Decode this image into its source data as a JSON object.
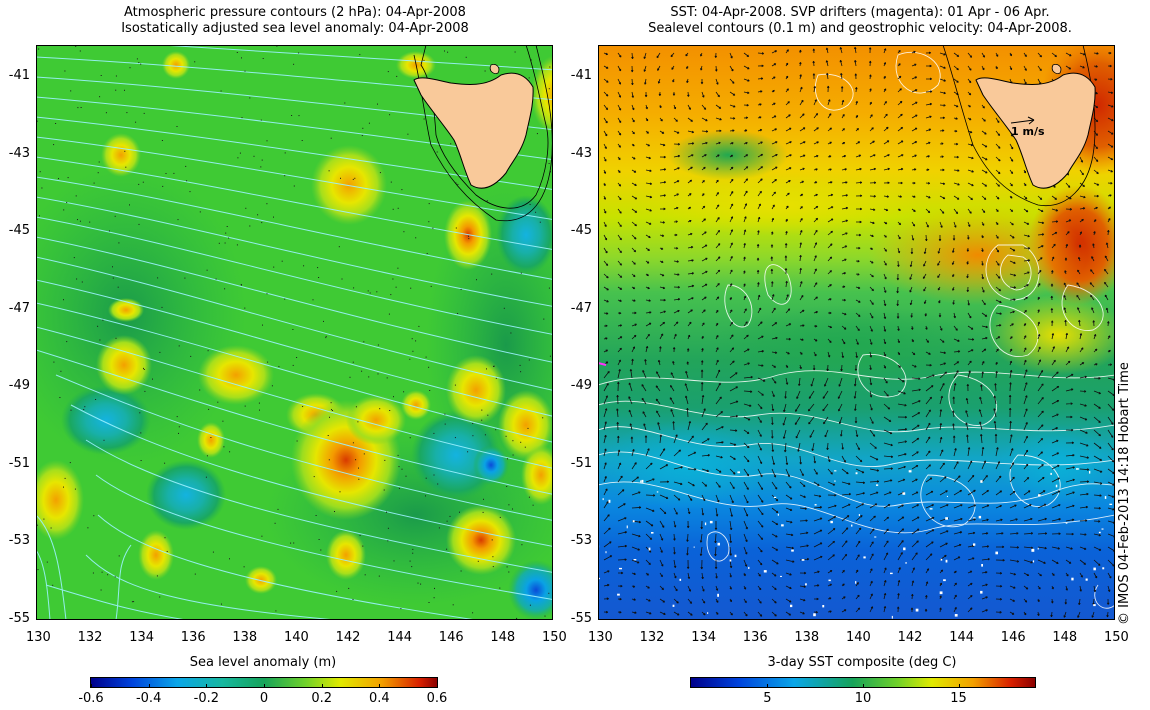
{
  "left_panel": {
    "title_line1": "Atmospheric pressure contours (2 hPa): 04-Apr-2008",
    "title_line2": "Isostatically adjusted sea level anomaly: 04-Apr-2008",
    "colorbar_title": "Sea level anomaly (m)",
    "colorbar_ticks": [
      {
        "label": "-0.6",
        "value": -0.6
      },
      {
        "label": "-0.4",
        "value": -0.4
      },
      {
        "label": "-0.2",
        "value": -0.2
      },
      {
        "label": "0",
        "value": 0
      },
      {
        "label": "0.2",
        "value": 0.2
      },
      {
        "label": "0.4",
        "value": 0.4
      },
      {
        "label": "0.6",
        "value": 0.6
      }
    ],
    "colorbar_range": [
      -0.6,
      0.6
    ]
  },
  "right_panel": {
    "title_line1": "SST: 04-Apr-2008. SVP drifters (magenta): 01 Apr - 06 Apr.",
    "title_line2": "Sealevel contours (0.1 m) and geostrophic velocity: 04-Apr-2008.",
    "colorbar_title": "3-day SST composite (deg C)",
    "colorbar_ticks": [
      {
        "label": "5",
        "value": 5
      },
      {
        "label": "10",
        "value": 10
      },
      {
        "label": "15",
        "value": 15
      }
    ],
    "colorbar_range": [
      1,
      19
    ],
    "velocity_scale_label": "1 m/s"
  },
  "axes": {
    "lon_ticks": [
      "130",
      "132",
      "134",
      "136",
      "138",
      "140",
      "142",
      "144",
      "146",
      "148",
      "150"
    ],
    "lat_ticks": [
      "-41",
      "-43",
      "-45",
      "-47",
      "-49",
      "-51",
      "-53",
      "-55"
    ],
    "lon_range": [
      130,
      150
    ],
    "lat_range": [
      -55,
      -40.2
    ]
  },
  "credit": "© IMOS 04-Feb-2013 14:18 Hobart Time",
  "colors": {
    "land": "#f9c99a",
    "sla_base": "#33cc33",
    "contour": "#ffffff",
    "pressure_contour": "#8ff0ff"
  }
}
